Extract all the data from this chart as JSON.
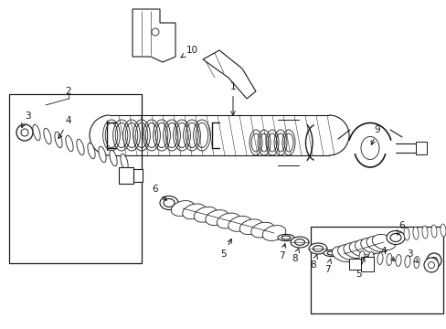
{
  "bg_color": "#ffffff",
  "line_color": "#1a1a1a",
  "fig_width": 4.89,
  "fig_height": 3.6,
  "dpi": 100,
  "lw_main": 0.8,
  "lw_thin": 0.5,
  "lw_hatch": 0.4,
  "fontsize": 7.5
}
